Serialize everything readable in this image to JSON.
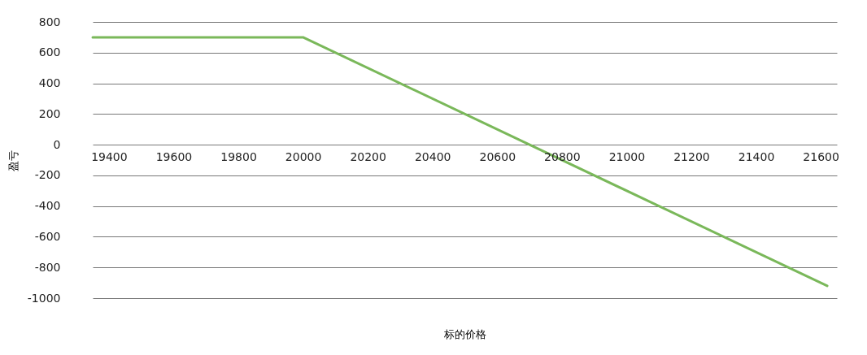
{
  "chart_data": {
    "type": "line",
    "xlabel": "标的价格",
    "ylabel": "盈亏",
    "x": [
      19350,
      20000,
      21620
    ],
    "series": [
      {
        "color": "#7ab85a",
        "values": [
          700,
          700,
          -920
        ]
      }
    ],
    "xlim": [
      19350,
      21650
    ],
    "xticks": [
      19400,
      19600,
      19800,
      20000,
      20200,
      20400,
      20600,
      20800,
      21000,
      21200,
      21400,
      21600
    ],
    "ylim": [
      -1000,
      800
    ],
    "yticks": [
      -1000,
      -800,
      -600,
      -400,
      -200,
      0,
      200,
      400,
      600,
      800
    ],
    "grid": "y",
    "marker": "none",
    "line_style": "solid"
  }
}
